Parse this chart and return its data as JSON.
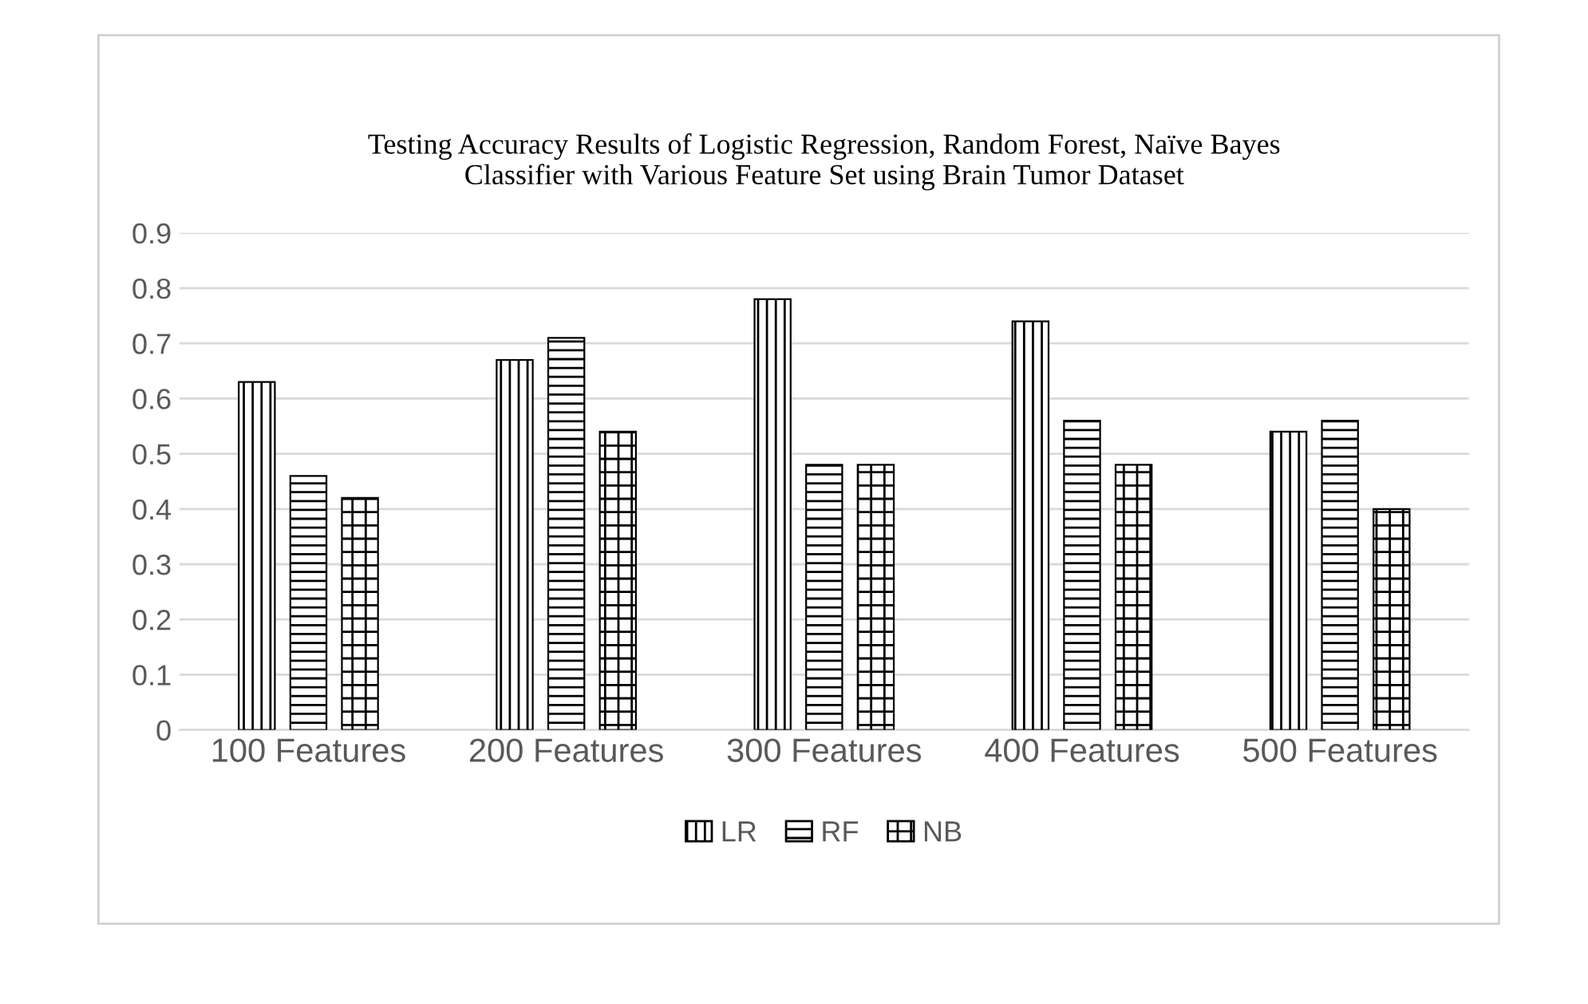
{
  "chart_data": {
    "type": "bar",
    "title": "Testing Accuracy Results of Logistic Regression, Random Forest, Naïve Bayes\nClassifier with Various Feature Set using Brain Tumor Dataset",
    "categories": [
      "100 Features",
      "200 Features",
      "300 Features",
      "400 Features",
      "500 Features"
    ],
    "series": [
      {
        "name": "LR",
        "color": "#000000",
        "values": [
          0.63,
          0.67,
          0.78,
          0.74,
          0.54
        ]
      },
      {
        "name": "RF",
        "color": "#000000",
        "values": [
          0.46,
          0.71,
          0.48,
          0.56,
          0.56
        ]
      },
      {
        "name": "NB",
        "color": "#000000",
        "values": [
          0.42,
          0.54,
          0.48,
          0.48,
          0.4
        ]
      }
    ],
    "ylim": [
      0,
      0.9
    ],
    "yticks": [
      {
        "value": 0,
        "label": "0"
      },
      0.1,
      0.2,
      0.3,
      0.4,
      0.5,
      0.6,
      0.7,
      0.8,
      0.9
    ],
    "grid": "y",
    "legend": "bottom"
  }
}
